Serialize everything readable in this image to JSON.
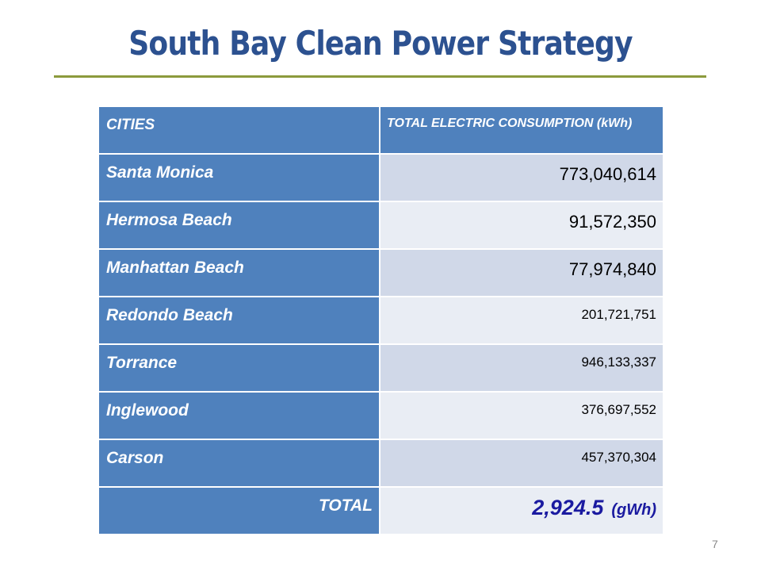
{
  "title": "South Bay Clean Power Strategy",
  "table": {
    "header": [
      "CITIES",
      "TOTAL ELECTRIC CONSUMPTION (kWh)"
    ],
    "rows": [
      [
        "Santa Monica",
        "773,040,614"
      ],
      [
        "Hermosa Beach",
        "91,572,350"
      ],
      [
        "Manhattan Beach",
        "77,974,840"
      ],
      [
        "Redondo Beach",
        "201,721,751"
      ],
      [
        "Torrance",
        "946,133,337"
      ],
      [
        "Inglewood",
        "376,697,552"
      ],
      [
        "Carson",
        "457,370,304"
      ]
    ],
    "total": {
      "label": "TOTAL",
      "value": "2,924.5",
      "unit": "(gWh)"
    }
  },
  "page_number": "7"
}
